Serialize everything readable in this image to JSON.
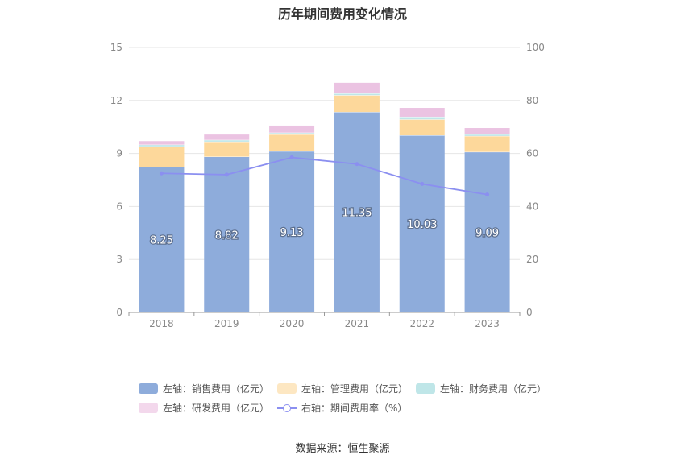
{
  "title": "历年期间费用变化情况",
  "source": "数据来源：恒生聚源",
  "chart_data": {
    "type": "bar",
    "stacked": true,
    "categories": [
      "2018",
      "2019",
      "2020",
      "2021",
      "2022",
      "2023"
    ],
    "left_axis": {
      "ylim": [
        0,
        15
      ],
      "ticks": [
        "0",
        "3",
        "6",
        "9",
        "12",
        "15"
      ]
    },
    "right_axis": {
      "ylim": [
        0,
        100
      ],
      "ticks": [
        "0",
        "20",
        "40",
        "60",
        "80",
        "100"
      ]
    },
    "series": [
      {
        "name": "左轴：销售费用（亿元）",
        "axis": "left",
        "color": "#8eacdb",
        "values": [
          8.25,
          8.82,
          9.13,
          11.35,
          10.03,
          9.09
        ],
        "labels": [
          "8.25",
          "8.82",
          "9.13",
          "11.35",
          "10.03",
          "9.09"
        ]
      },
      {
        "name": "左轴：管理费用（亿元）",
        "axis": "left",
        "color": "#fdd89b",
        "values": [
          1.15,
          0.85,
          0.95,
          0.95,
          0.9,
          0.9
        ]
      },
      {
        "name": "左轴：财务费用（亿元）",
        "axis": "left",
        "color": "#bfe6e8",
        "values": [
          0.1,
          0.1,
          0.1,
          0.1,
          0.15,
          0.1
        ]
      },
      {
        "name": "左轴：研发费用（亿元）",
        "axis": "left",
        "color": "#ebc3e2",
        "values": [
          0.2,
          0.3,
          0.4,
          0.6,
          0.5,
          0.35
        ]
      },
      {
        "name": "右轴：期间费用率（%）",
        "axis": "right",
        "type": "line",
        "color": "#8b8ff0",
        "values": [
          52.5,
          52.0,
          58.5,
          56.0,
          48.5,
          44.5
        ]
      }
    ],
    "legend_position": "bottom",
    "grid": true
  }
}
